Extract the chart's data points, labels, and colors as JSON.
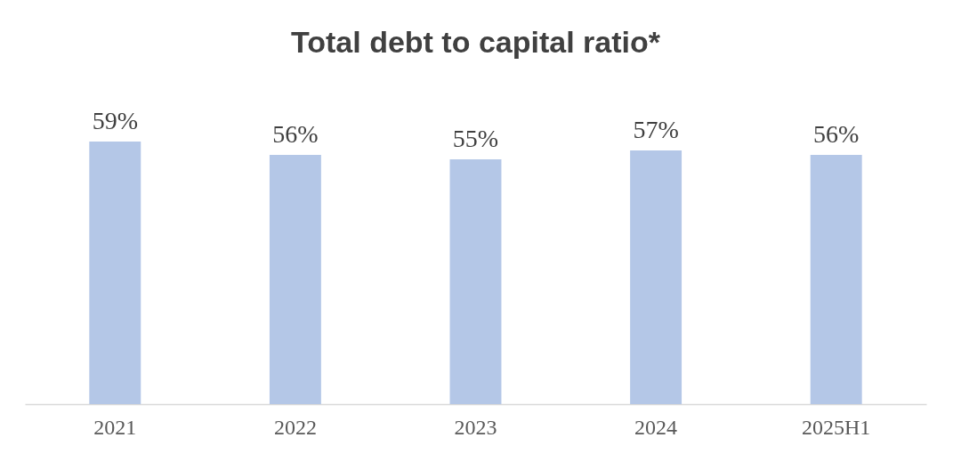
{
  "chart_data": {
    "type": "bar",
    "title": "Total debt to capital ratio*",
    "categories": [
      "2021",
      "2022",
      "2023",
      "2024",
      "2025H1"
    ],
    "values": [
      59,
      56,
      55,
      57,
      56
    ],
    "color": "#b4c7e7",
    "value_labels": [
      "59%",
      "56%",
      "55%",
      "57%",
      "56%"
    ],
    "tick_labels": "x"
  }
}
